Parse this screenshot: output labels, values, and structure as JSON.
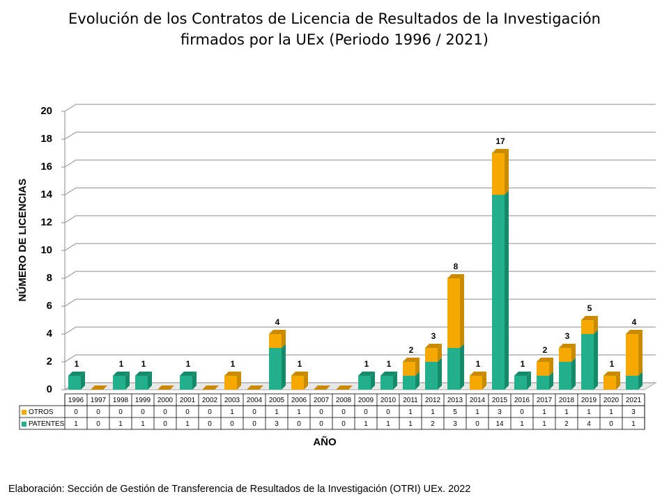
{
  "chart_data": {
    "type": "bar",
    "stacked": true,
    "title": [
      "Evolución de los Contratos de Licencia de Resultados de la Investigación",
      "firmados por la UEx (Periodo 1996 / 2021)"
    ],
    "xlabel": "AÑO",
    "ylabel": "NÚMERO DE LICENCIAS",
    "source": "Elaboración: Sección de Gestión de Transferencia de Resultados de la Investigación (OTRI) UEx. 2022",
    "categories": [
      "1996",
      "1997",
      "1998",
      "1999",
      "2000",
      "2001",
      "2002",
      "2003",
      "2004",
      "2005",
      "2006",
      "2007",
      "2008",
      "2009",
      "2010",
      "2011",
      "2012",
      "2013",
      "2014",
      "2015",
      "2016",
      "2017",
      "2018",
      "2019",
      "2020",
      "2021"
    ],
    "series": [
      {
        "name": "OTROS",
        "color": "#f5a800",
        "side_color": "#c98a00",
        "values": [
          0,
          0,
          0,
          0,
          0,
          0,
          0,
          1,
          0,
          1,
          1,
          0,
          0,
          0,
          0,
          1,
          1,
          5,
          1,
          3,
          0,
          1,
          1,
          1,
          1,
          3
        ]
      },
      {
        "name": "PATENTES",
        "color": "#22b08c",
        "side_color": "#178a6c",
        "values": [
          1,
          0,
          1,
          1,
          0,
          1,
          0,
          0,
          0,
          3,
          0,
          0,
          0,
          1,
          1,
          1,
          2,
          3,
          0,
          14,
          1,
          1,
          2,
          4,
          0,
          1
        ]
      }
    ],
    "totals": [
      1,
      null,
      1,
      1,
      null,
      1,
      null,
      1,
      null,
      4,
      1,
      null,
      null,
      1,
      1,
      2,
      3,
      8,
      1,
      17,
      1,
      2,
      3,
      5,
      1,
      4
    ],
    "ylim": [
      0,
      20
    ],
    "yticks": [
      0,
      2,
      4,
      6,
      8,
      10,
      12,
      14,
      16,
      18,
      20
    ],
    "grid": true,
    "data_table": true
  }
}
